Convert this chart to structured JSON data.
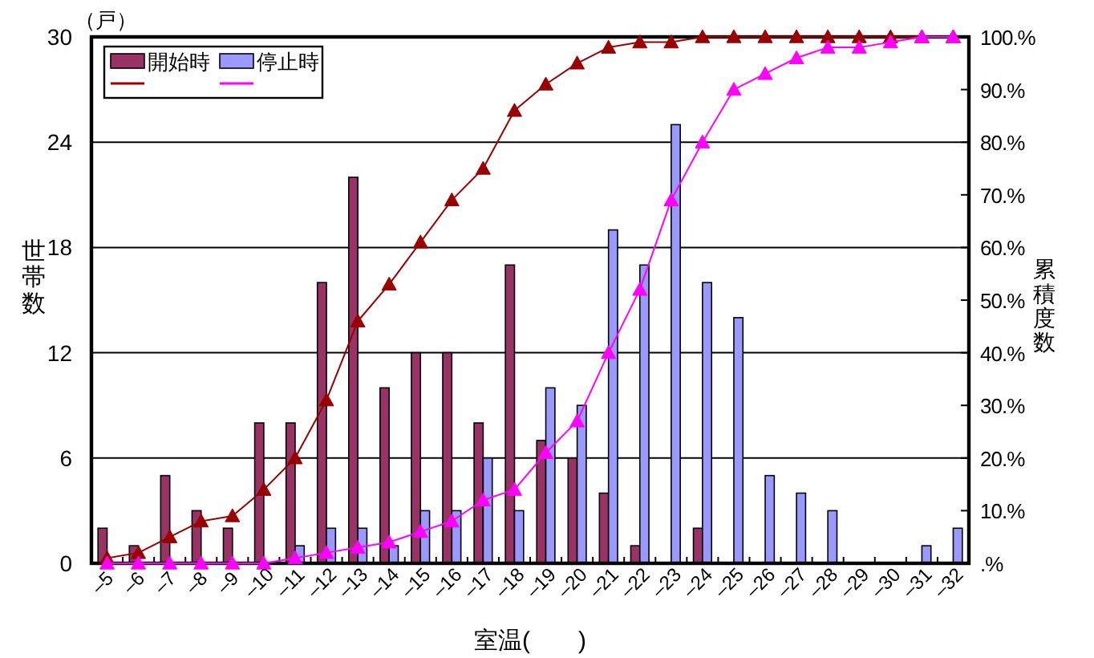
{
  "chart_data": {
    "type": "bar",
    "xlabel": "室温(　　)",
    "ylabel": "世帯数",
    "y2label": "累積度数",
    "annotations": [
      "（戸）"
    ],
    "categories": [
      "–5",
      "–6",
      "–7",
      "–8",
      "–9",
      "–10",
      "–11",
      "–12",
      "–13",
      "–14",
      "–15",
      "–16",
      "–17",
      "–18",
      "–19",
      "–20",
      "–21",
      "–22",
      "–23",
      "–24",
      "–25",
      "–26",
      "–27",
      "–28",
      "–29",
      "–30",
      "–31",
      "–32"
    ],
    "series": [
      {
        "name": "開始時",
        "color": "#993366",
        "values": [
          2,
          1,
          5,
          3,
          2,
          8,
          8,
          16,
          22,
          10,
          12,
          12,
          8,
          17,
          7,
          6,
          4,
          1,
          0,
          2,
          0,
          0,
          0,
          0,
          0,
          0,
          0,
          0
        ]
      },
      {
        "name": "停止時",
        "color": "#9999ff",
        "values": [
          0,
          0,
          0,
          0,
          0,
          0,
          1,
          2,
          2,
          1,
          3,
          3,
          6,
          3,
          10,
          9,
          19,
          17,
          25,
          16,
          14,
          5,
          4,
          3,
          0,
          0,
          1,
          2
        ]
      },
      {
        "type": "line",
        "axis": "y2",
        "color": "#990000",
        "values": [
          1,
          2,
          5,
          8,
          9,
          14,
          20,
          31,
          46,
          53,
          61,
          69,
          75,
          86,
          91,
          95,
          98,
          99,
          99,
          100,
          100,
          100,
          100,
          100,
          100,
          100,
          100,
          100
        ]
      },
      {
        "type": "line",
        "axis": "y2",
        "color": "#ff00ff",
        "values": [
          0,
          0,
          0,
          0,
          0,
          0,
          1,
          2,
          3,
          4,
          6,
          8,
          12,
          14,
          21,
          27,
          40,
          52,
          69,
          80,
          90,
          93,
          96,
          98,
          98,
          99,
          100,
          100
        ]
      }
    ],
    "ylim": [
      0,
      30
    ],
    "yticks": [
      0,
      6,
      12,
      18,
      24,
      30
    ],
    "y2lim": [
      0,
      100
    ],
    "y2ticks": [
      {
        "value": 0,
        "label": ".%"
      },
      {
        "value": 10,
        "label": "10.%"
      },
      {
        "value": 20,
        "label": "20.%"
      },
      {
        "value": 30,
        "label": "30.%"
      },
      {
        "value": 40,
        "label": "40.%"
      },
      {
        "value": 50,
        "label": "50.%"
      },
      {
        "value": 60,
        "label": "60.%"
      },
      {
        "value": 70,
        "label": "70.%"
      },
      {
        "value": 80,
        "label": "80.%"
      },
      {
        "value": 90,
        "label": "90.%"
      },
      {
        "value": 100,
        "label": "100.%"
      }
    ],
    "grid": "y",
    "legend": "top left",
    "marker": "triangle"
  }
}
